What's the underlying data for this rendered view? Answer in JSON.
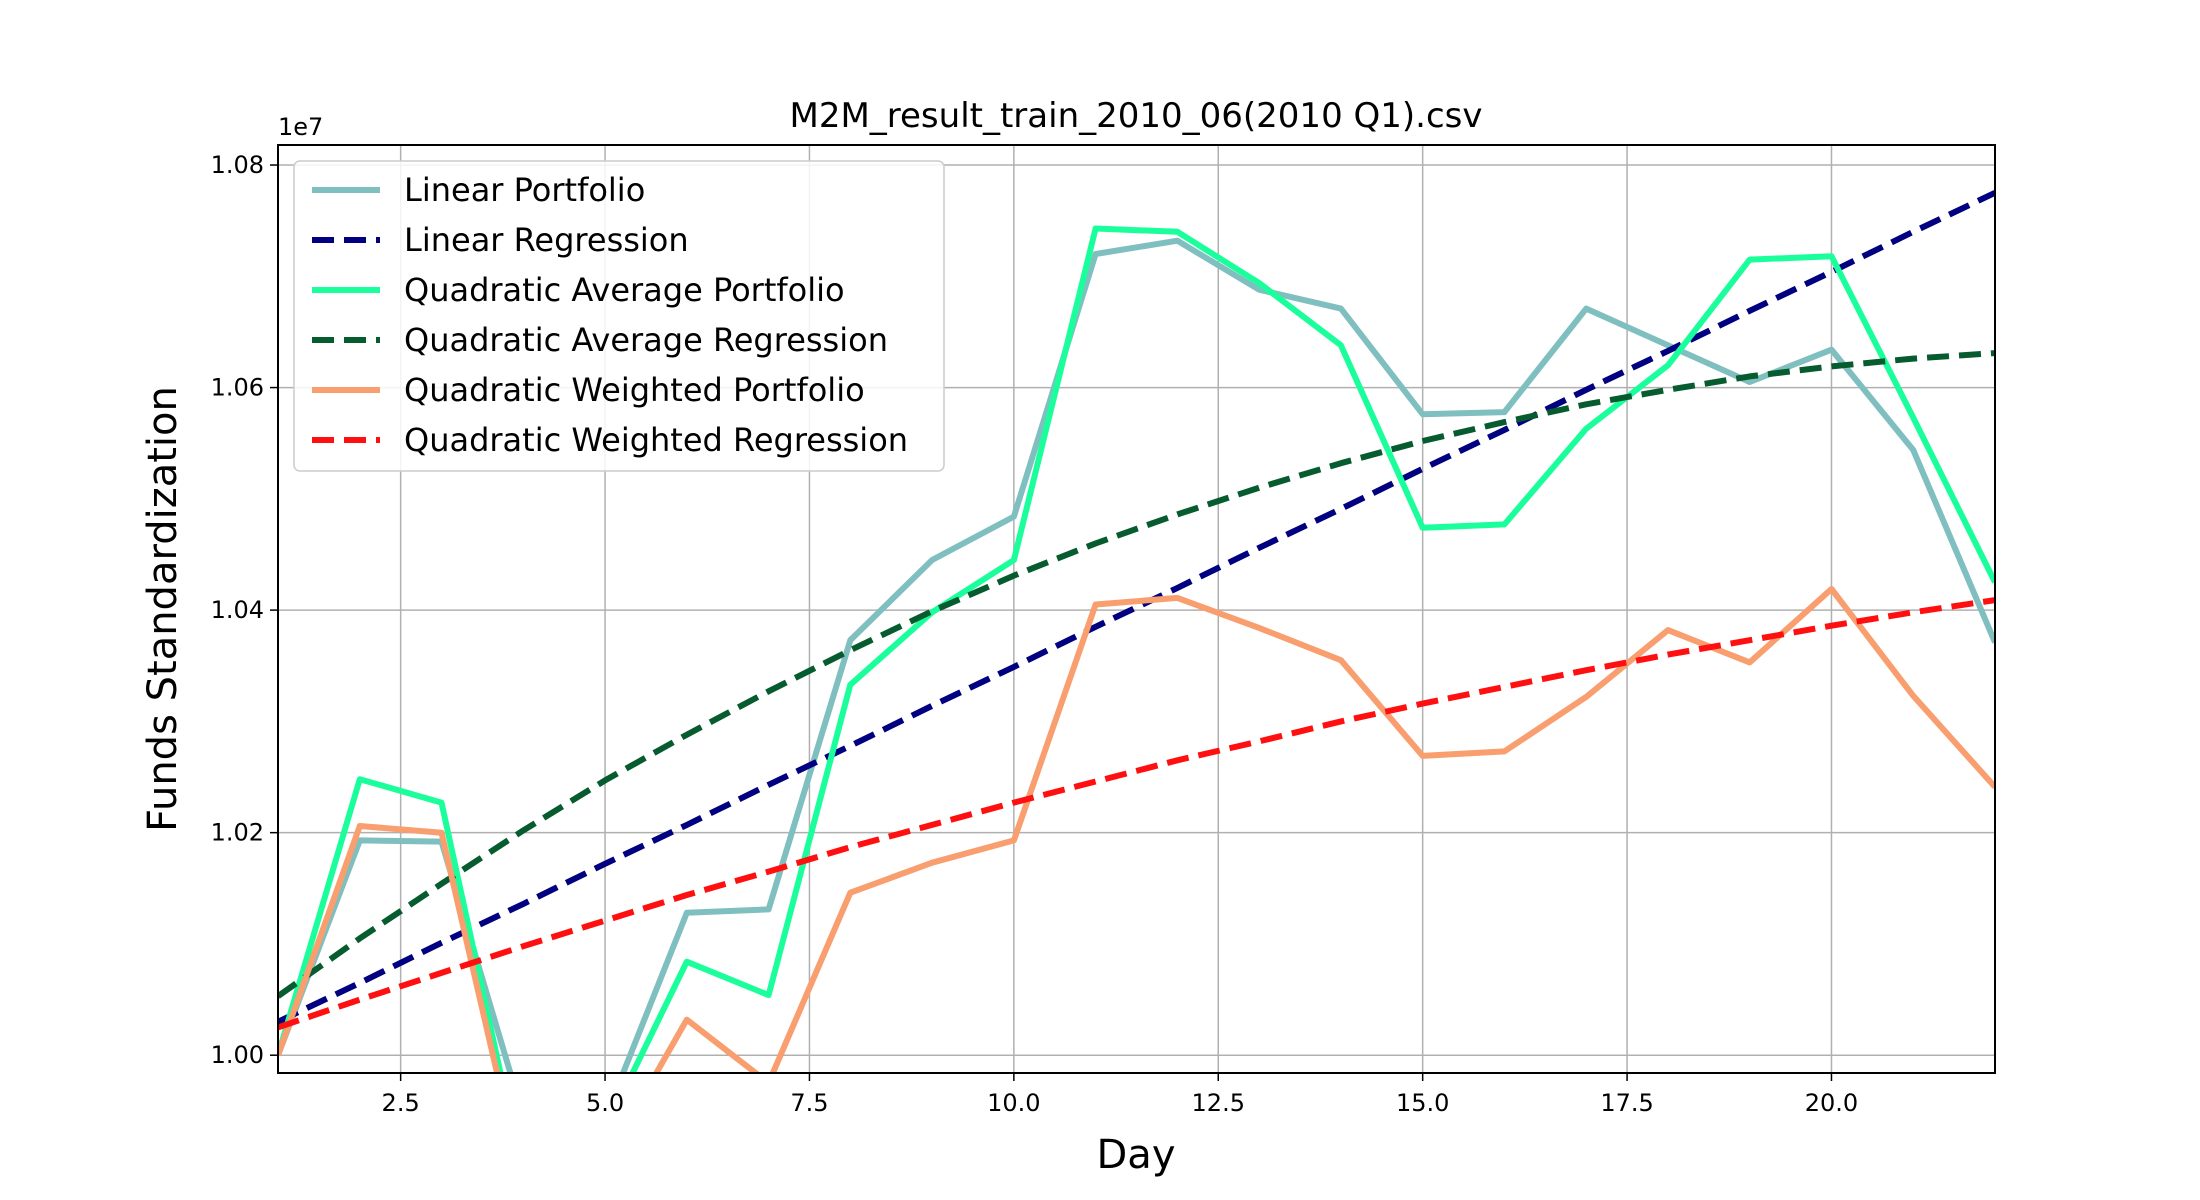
{
  "chart_data": {
    "type": "line",
    "title": "M2M_result_train_2010_06(2010 Q1).csv",
    "xlabel": "Day",
    "ylabel": "Funds Standardization",
    "y_offset_label": "1e7",
    "xlim": [
      1,
      22
    ],
    "ylim": [
      0.9984,
      1.0818
    ],
    "xticks": [
      2.5,
      5.0,
      7.5,
      10.0,
      12.5,
      15.0,
      17.5,
      20.0
    ],
    "xtick_labels": [
      "2.5",
      "5.0",
      "7.5",
      "10.0",
      "12.5",
      "15.0",
      "17.5",
      "20.0"
    ],
    "yticks": [
      1.0,
      1.02,
      1.04,
      1.06,
      1.08
    ],
    "ytick_labels": [
      "1.00",
      "1.02",
      "1.04",
      "1.06",
      "1.08"
    ],
    "grid": true,
    "legend_position": "top-left",
    "x": [
      1,
      2,
      3,
      4,
      5,
      6,
      7,
      8,
      9,
      10,
      11,
      12,
      13,
      14,
      15,
      16,
      17,
      18,
      19,
      20,
      21,
      22
    ],
    "series": [
      {
        "name": "Linear Portfolio",
        "color": "#80bfbf",
        "style": "solid",
        "values": [
          1.0,
          1.0193,
          1.0192,
          0.9945,
          0.9943,
          1.0128,
          1.0131,
          1.0373,
          1.0445,
          1.0484,
          1.072,
          1.0732,
          1.0688,
          1.0671,
          1.0576,
          1.0578,
          1.0671,
          1.0638,
          1.0605,
          1.0634,
          1.0544,
          1.0371
        ]
      },
      {
        "name": "Linear Regression",
        "color": "#000080",
        "style": "dashed",
        "values": [
          1.003,
          1.0065,
          1.0101,
          1.0136,
          1.0172,
          1.0207,
          1.0243,
          1.0278,
          1.0314,
          1.0349,
          1.0385,
          1.042,
          1.0456,
          1.0491,
          1.0527,
          1.0562,
          1.0598,
          1.0633,
          1.0669,
          1.0704,
          1.074,
          1.0775
        ]
      },
      {
        "name": "Quadratic Average Portfolio",
        "color": "#1aff9c",
        "style": "solid",
        "values": [
          1.0,
          1.0248,
          1.0227,
          0.989,
          0.9933,
          1.0084,
          1.0054,
          1.0333,
          1.0398,
          1.0445,
          1.0743,
          1.074,
          1.0694,
          1.0638,
          1.0474,
          1.0477,
          1.0563,
          1.062,
          1.0715,
          1.0718,
          1.0573,
          1.0425
        ]
      },
      {
        "name": "Quadratic Average Regression",
        "color": "#065c2e",
        "style": "dashed",
        "values": [
          1.0053,
          1.0105,
          1.0154,
          1.0202,
          1.0247,
          1.0288,
          1.0327,
          1.0364,
          1.0399,
          1.0431,
          1.046,
          1.0486,
          1.051,
          1.0532,
          1.0552,
          1.0569,
          1.0585,
          1.0598,
          1.061,
          1.0619,
          1.0626,
          1.0631
        ]
      },
      {
        "name": "Quadratic Weighted Portfolio",
        "color": "#f99e6f",
        "style": "solid",
        "values": [
          1.0,
          1.0206,
          1.02,
          0.9882,
          0.9903,
          1.0032,
          0.9975,
          1.0146,
          1.0173,
          1.0193,
          1.0405,
          1.0411,
          1.0384,
          1.0355,
          1.0269,
          1.0273,
          1.0322,
          1.0382,
          1.0353,
          1.0419,
          1.0323,
          1.0241
        ]
      },
      {
        "name": "Quadratic Weighted Regression",
        "color": "#ff0f0f",
        "style": "dashed",
        "values": [
          1.0025,
          1.005,
          1.0074,
          1.0098,
          1.0121,
          1.0144,
          1.0165,
          1.0187,
          1.0207,
          1.0227,
          1.0246,
          1.0265,
          1.0282,
          1.03,
          1.0316,
          1.0331,
          1.0346,
          1.036,
          1.0373,
          1.0386,
          1.0398,
          1.0409
        ]
      }
    ]
  }
}
